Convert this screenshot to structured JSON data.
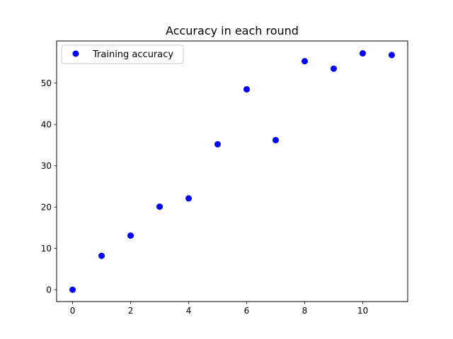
{
  "chart_data": {
    "type": "scatter",
    "title": "Accuracy in each round",
    "xlabel": "",
    "ylabel": "",
    "xlim": [
      -0.55,
      11.55
    ],
    "ylim": [
      -2.87,
      60.2
    ],
    "x_ticks": [
      0,
      2,
      4,
      6,
      8,
      10
    ],
    "y_ticks": [
      0,
      10,
      20,
      30,
      40,
      50
    ],
    "grid": false,
    "legend_position": "upper-left",
    "series": [
      {
        "name": "Training accuracy",
        "color": "#0000ff",
        "marker": "circle",
        "x": [
          0,
          1,
          2,
          3,
          4,
          5,
          6,
          7,
          8,
          9,
          10,
          11
        ],
        "y": [
          0.0,
          8.2,
          13.1,
          20.1,
          22.1,
          35.2,
          48.5,
          36.2,
          55.3,
          53.5,
          57.2,
          56.8
        ]
      }
    ]
  }
}
